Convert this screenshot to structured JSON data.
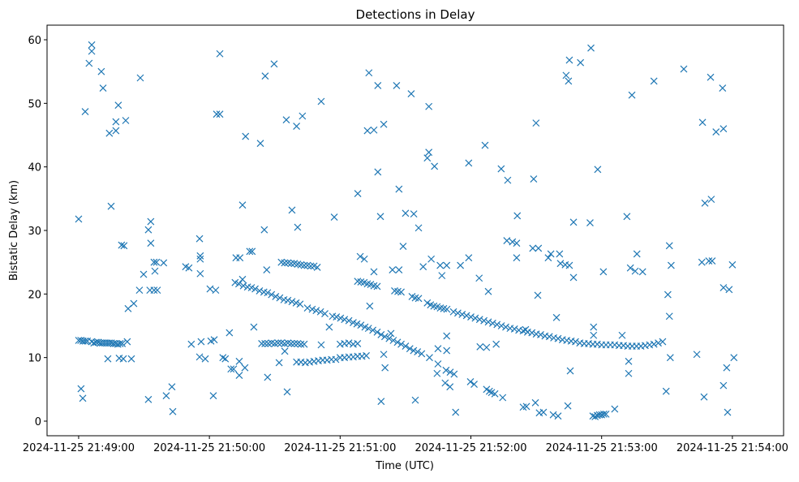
{
  "chart_data": {
    "type": "scatter",
    "title": "Detections in Delay",
    "xlabel": "Time (UTC)",
    "ylabel": "Bistatic Delay (km)",
    "x_units": "seconds after 2024-11-25 21:49:00",
    "xlim": [
      -14.5,
      323.5
    ],
    "ylim": [
      -2.3,
      62.3
    ],
    "grid": false,
    "marker": "x",
    "color": "#1f77b4",
    "xticks": [
      {
        "value": 0,
        "label": "2024-11-25 21:49:00"
      },
      {
        "value": 60,
        "label": "2024-11-25 21:50:00"
      },
      {
        "value": 120,
        "label": "2024-11-25 21:51:00"
      },
      {
        "value": 180,
        "label": "2024-11-25 21:52:00"
      },
      {
        "value": 240,
        "label": "2024-11-25 21:53:00"
      },
      {
        "value": 300,
        "label": "2024-11-25 21:54:00"
      }
    ],
    "yticks": [
      {
        "value": 0,
        "label": "0"
      },
      {
        "value": 10,
        "label": "10"
      },
      {
        "value": 20,
        "label": "20"
      },
      {
        "value": 30,
        "label": "30"
      },
      {
        "value": 40,
        "label": "40"
      },
      {
        "value": 50,
        "label": "50"
      },
      {
        "value": 60,
        "label": "60"
      }
    ],
    "points": [
      [
        0,
        31.8
      ],
      [
        1.1,
        5.1
      ],
      [
        1.9,
        3.6
      ],
      [
        3,
        48.7
      ],
      [
        4.8,
        56.3
      ],
      [
        6,
        59.2
      ],
      [
        6,
        58.2
      ],
      [
        10.4,
        55
      ],
      [
        11.2,
        52.4
      ],
      [
        14.1,
        45.3
      ],
      [
        17.1,
        45.7
      ],
      [
        18.2,
        49.7
      ],
      [
        17.1,
        47.1
      ],
      [
        21.6,
        47.3
      ],
      [
        14.9,
        33.8
      ],
      [
        19.7,
        27.7
      ],
      [
        20.8,
        27.6
      ],
      [
        13.4,
        9.8
      ],
      [
        18.6,
        9.9
      ],
      [
        20.5,
        9.8
      ],
      [
        24.2,
        9.8
      ],
      [
        22.3,
        12.5
      ],
      [
        22.7,
        17.7
      ],
      [
        25.3,
        18.5
      ],
      [
        27.9,
        20.6
      ],
      [
        28.3,
        54
      ],
      [
        29.8,
        23.1
      ],
      [
        32,
        30.1
      ],
      [
        33.1,
        31.4
      ],
      [
        33.1,
        28
      ],
      [
        32.7,
        20.6
      ],
      [
        34.6,
        20.6
      ],
      [
        36.1,
        20.6
      ],
      [
        35,
        23.6
      ],
      [
        34.6,
        25
      ],
      [
        35.7,
        25
      ],
      [
        39,
        24.9
      ],
      [
        32,
        3.4
      ],
      [
        40.2,
        4
      ],
      [
        42.8,
        5.4
      ],
      [
        43.2,
        1.5
      ],
      [
        49.1,
        24.3
      ],
      [
        50.6,
        24.1
      ],
      [
        51.7,
        12.1
      ],
      [
        55.5,
        28.7
      ],
      [
        55.8,
        26
      ],
      [
        55.8,
        25.5
      ],
      [
        55.8,
        23.2
      ],
      [
        56.2,
        12.5
      ],
      [
        55.5,
        10.1
      ],
      [
        58.1,
        9.8
      ],
      [
        60.3,
        20.8
      ],
      [
        60.7,
        12.6
      ],
      [
        62.2,
        12.8
      ],
      [
        61.8,
        4
      ],
      [
        62.9,
        20.6
      ],
      [
        63.3,
        48.3
      ],
      [
        64.8,
        48.3
      ],
      [
        64.8,
        57.8
      ],
      [
        66.2,
        10
      ],
      [
        67.3,
        9.8
      ],
      [
        69.2,
        13.9
      ],
      [
        69.9,
        8.2
      ],
      [
        71.1,
        8.2
      ],
      [
        73.7,
        9.4
      ],
      [
        73.7,
        7.2
      ],
      [
        76.3,
        8.4
      ],
      [
        75.2,
        34
      ],
      [
        76.6,
        44.8
      ],
      [
        72.2,
        25.7
      ],
      [
        74,
        25.7
      ],
      [
        75.2,
        22.3
      ],
      [
        78.5,
        26.7
      ],
      [
        79.6,
        26.7
      ],
      [
        80.4,
        14.8
      ],
      [
        83.4,
        43.7
      ],
      [
        85.2,
        30.1
      ],
      [
        85.6,
        54.3
      ],
      [
        89.7,
        56.2
      ],
      [
        86.3,
        23.8
      ],
      [
        86.7,
        6.9
      ],
      [
        95.3,
        47.4
      ],
      [
        100,
        46.4
      ],
      [
        102.7,
        48
      ],
      [
        97.9,
        33.2
      ],
      [
        100.5,
        30.5
      ],
      [
        95.7,
        4.6
      ],
      [
        92,
        9.2
      ],
      [
        94.6,
        11
      ],
      [
        111.3,
        50.3
      ],
      [
        117.3,
        32.1
      ],
      [
        115,
        14.8
      ],
      [
        111.3,
        12
      ],
      [
        128.1,
        35.8
      ],
      [
        129.2,
        25.9
      ],
      [
        131.1,
        25.5
      ],
      [
        133.2,
        54.8
      ],
      [
        132.5,
        45.7
      ],
      [
        135.5,
        45.8
      ],
      [
        137.3,
        52.8
      ],
      [
        137.3,
        39.2
      ],
      [
        140,
        46.7
      ],
      [
        138.5,
        32.2
      ],
      [
        133.6,
        18.1
      ],
      [
        135.5,
        23.5
      ],
      [
        140.6,
        8.4
      ],
      [
        140,
        10.5
      ],
      [
        138.8,
        3.1
      ],
      [
        143.3,
        13.8
      ],
      [
        145.9,
        52.8
      ],
      [
        147,
        36.5
      ],
      [
        148.9,
        27.5
      ],
      [
        150,
        32.7
      ],
      [
        152.6,
        51.5
      ],
      [
        153.8,
        32.6
      ],
      [
        156,
        30.4
      ],
      [
        144,
        23.8
      ],
      [
        147,
        23.8
      ],
      [
        154.5,
        3.3
      ],
      [
        158.1,
        24.3
      ],
      [
        160.7,
        42.3
      ],
      [
        160,
        41.4
      ],
      [
        160.7,
        49.5
      ],
      [
        163.3,
        40.1
      ],
      [
        161.8,
        25.5
      ],
      [
        165.9,
        24.5
      ],
      [
        168.9,
        24.5
      ],
      [
        166.7,
        22.9
      ],
      [
        164.9,
        11.4
      ],
      [
        168.9,
        13.4
      ],
      [
        168.9,
        11.1
      ],
      [
        164.5,
        7.5
      ],
      [
        168.2,
        6
      ],
      [
        170.4,
        5.4
      ],
      [
        173,
        1.4
      ],
      [
        175.2,
        24.5
      ],
      [
        179,
        40.6
      ],
      [
        179,
        25.7
      ],
      [
        183.8,
        22.5
      ],
      [
        186.5,
        43.4
      ],
      [
        188,
        20.4
      ],
      [
        184.2,
        11.7
      ],
      [
        187.2,
        11.6
      ],
      [
        191.6,
        12.1
      ],
      [
        193.9,
        39.7
      ],
      [
        196.9,
        37.9
      ],
      [
        196.5,
        28.4
      ],
      [
        199.1,
        28.2
      ],
      [
        201.3,
        32.3
      ],
      [
        201,
        28
      ],
      [
        201,
        25.7
      ],
      [
        205.1,
        14.4
      ],
      [
        208.8,
        38.1
      ],
      [
        209.9,
        46.9
      ],
      [
        208.4,
        27.2
      ],
      [
        211,
        27.2
      ],
      [
        210.7,
        19.8
      ],
      [
        204,
        2.2
      ],
      [
        205.5,
        2.3
      ],
      [
        209.6,
        2.9
      ],
      [
        211.4,
        1.3
      ],
      [
        213.3,
        1.4
      ],
      [
        215.5,
        25.7
      ],
      [
        216.7,
        26.3
      ],
      [
        217.8,
        1
      ],
      [
        219.3,
        16.3
      ],
      [
        220.7,
        26.3
      ],
      [
        221.1,
        24.8
      ],
      [
        223.3,
        24.6
      ],
      [
        225.2,
        24.5
      ],
      [
        224.5,
        2.4
      ],
      [
        220,
        0.8
      ],
      [
        223.7,
        54.4
      ],
      [
        224.8,
        53.5
      ],
      [
        225.2,
        56.8
      ],
      [
        227.1,
        31.3
      ],
      [
        227.1,
        22.6
      ],
      [
        225.6,
        7.9
      ],
      [
        230.3,
        56.4
      ],
      [
        235.1,
        58.7
      ],
      [
        234.7,
        31.2
      ],
      [
        236.3,
        14.8
      ],
      [
        236.3,
        13.5
      ],
      [
        238.2,
        39.6
      ],
      [
        240.8,
        23.5
      ],
      [
        246,
        1.9
      ],
      [
        249.4,
        13.5
      ],
      [
        251.6,
        32.2
      ],
      [
        252.4,
        9.4
      ],
      [
        252.4,
        7.5
      ],
      [
        253.9,
        51.3
      ],
      [
        253.2,
        24.1
      ],
      [
        255.4,
        23.6
      ],
      [
        256.2,
        26.3
      ],
      [
        258.8,
        23.5
      ],
      [
        264,
        53.5
      ],
      [
        269.6,
        4.7
      ],
      [
        270.4,
        19.9
      ],
      [
        271.1,
        16.5
      ],
      [
        271.1,
        27.6
      ],
      [
        271.5,
        10
      ],
      [
        271.9,
        24.5
      ],
      [
        277.7,
        55.4
      ],
      [
        283.7,
        10.5
      ],
      [
        286.3,
        47
      ],
      [
        286,
        25
      ],
      [
        287.4,
        34.3
      ],
      [
        287,
        3.8
      ],
      [
        290,
        54.1
      ],
      [
        290.3,
        34.9
      ],
      [
        289.2,
        25.2
      ],
      [
        290.7,
        25.2
      ],
      [
        292.5,
        45.5
      ],
      [
        295.5,
        52.4
      ],
      [
        295.9,
        46
      ],
      [
        295.9,
        21
      ],
      [
        298.5,
        20.7
      ],
      [
        295.9,
        5.6
      ],
      [
        297.4,
        8.4
      ],
      [
        297.8,
        1.4
      ],
      [
        300,
        24.6
      ],
      [
        300.7,
        10
      ],
      [
        0,
        12.7
      ],
      [
        1,
        12.7
      ],
      [
        2,
        12.6
      ],
      [
        3,
        12.6
      ],
      [
        4,
        12.6
      ],
      [
        6,
        12.5
      ],
      [
        7,
        12.3
      ],
      [
        8,
        12.4
      ],
      [
        9,
        12.4
      ],
      [
        10,
        12.3
      ],
      [
        11,
        12.3
      ],
      [
        12,
        12.3
      ],
      [
        13,
        12.3
      ],
      [
        14,
        12.3
      ],
      [
        15,
        12.3
      ],
      [
        16,
        12.2
      ],
      [
        17,
        12.2
      ],
      [
        18,
        12.1
      ],
      [
        19,
        12.2
      ],
      [
        20,
        12.2
      ],
      [
        84,
        12.2
      ],
      [
        85.5,
        12.2
      ],
      [
        87,
        12.2
      ],
      [
        88.5,
        12.3
      ],
      [
        90,
        12.2
      ],
      [
        91.5,
        12.3
      ],
      [
        93,
        12.3
      ],
      [
        94.5,
        12.2
      ],
      [
        96,
        12.3
      ],
      [
        97.5,
        12.2
      ],
      [
        99,
        12.2
      ],
      [
        100.5,
        12.2
      ],
      [
        102,
        12.1
      ],
      [
        103.5,
        12.1
      ],
      [
        93,
        25
      ],
      [
        94.5,
        24.9
      ],
      [
        96,
        24.9
      ],
      [
        97.5,
        24.8
      ],
      [
        99,
        24.8
      ],
      [
        100.5,
        24.7
      ],
      [
        102,
        24.6
      ],
      [
        103.5,
        24.5
      ],
      [
        105,
        24.5
      ],
      [
        106.5,
        24.4
      ],
      [
        108,
        24.4
      ],
      [
        109.5,
        24.2
      ],
      [
        71.8,
        21.8
      ],
      [
        73.5,
        21.6
      ],
      [
        75.6,
        21.3
      ],
      [
        77.5,
        21.1
      ],
      [
        79.3,
        21
      ],
      [
        81,
        20.8
      ],
      [
        83,
        20.5
      ],
      [
        85,
        20.3
      ],
      [
        86.7,
        20.2
      ],
      [
        88.5,
        19.9
      ],
      [
        90.4,
        19.6
      ],
      [
        92.3,
        19.4
      ],
      [
        94.2,
        19.1
      ],
      [
        96,
        19
      ],
      [
        97.9,
        18.8
      ],
      [
        99.8,
        18.6
      ],
      [
        101.6,
        18.4
      ],
      [
        105,
        17.8
      ],
      [
        107.2,
        17.6
      ],
      [
        109,
        17.4
      ],
      [
        111,
        17.2
      ],
      [
        113,
        16.9
      ],
      [
        116.5,
        16.5
      ],
      [
        118.3,
        16.4
      ],
      [
        120.2,
        16.2
      ],
      [
        122,
        16
      ],
      [
        124,
        15.8
      ],
      [
        126,
        15.5
      ],
      [
        127.7,
        15.3
      ],
      [
        129.5,
        15.1
      ],
      [
        131.4,
        14.8
      ],
      [
        133,
        14.6
      ],
      [
        135,
        14.3
      ],
      [
        137,
        14
      ],
      [
        138.8,
        13.6
      ],
      [
        140.5,
        13.3
      ],
      [
        142.5,
        13
      ],
      [
        144.4,
        12.7
      ],
      [
        146.3,
        12.4
      ],
      [
        148,
        12.1
      ],
      [
        150,
        11.8
      ],
      [
        152,
        11.4
      ],
      [
        153.7,
        11.1
      ],
      [
        155.5,
        10.9
      ],
      [
        157.4,
        10.6
      ],
      [
        161,
        10
      ],
      [
        164.9,
        9
      ],
      [
        168.6,
        8
      ],
      [
        170.5,
        7.7
      ],
      [
        172.3,
        7.4
      ],
      [
        179.8,
        6.2
      ],
      [
        181.5,
        5.8
      ],
      [
        187.2,
        5
      ],
      [
        188.5,
        4.7
      ],
      [
        189.5,
        4.5
      ],
      [
        191,
        4.3
      ],
      [
        194.6,
        3.7
      ],
      [
        128,
        22
      ],
      [
        129.5,
        21.9
      ],
      [
        131,
        21.8
      ],
      [
        132.5,
        21.6
      ],
      [
        134,
        21.5
      ],
      [
        135.5,
        21.3
      ],
      [
        137,
        21.2
      ],
      [
        145,
        20.5
      ],
      [
        146.5,
        20.4
      ],
      [
        148,
        20.3
      ],
      [
        153,
        19.6
      ],
      [
        154.5,
        19.4
      ],
      [
        156,
        19.3
      ],
      [
        160,
        18.6
      ],
      [
        161.5,
        18.3
      ],
      [
        163,
        18.1
      ],
      [
        164.5,
        18
      ],
      [
        166,
        17.8
      ],
      [
        167.5,
        17.7
      ],
      [
        169,
        17.6
      ],
      [
        172,
        17.2
      ],
      [
        174,
        17
      ],
      [
        176,
        16.8
      ],
      [
        178,
        16.6
      ],
      [
        180,
        16.4
      ],
      [
        182,
        16.2
      ],
      [
        184,
        16
      ],
      [
        186,
        15.8
      ],
      [
        188,
        15.6
      ],
      [
        190,
        15.4
      ],
      [
        192,
        15.2
      ],
      [
        194,
        15
      ],
      [
        196,
        14.8
      ],
      [
        198,
        14.6
      ],
      [
        200,
        14.5
      ],
      [
        202,
        14.3
      ],
      [
        204,
        14.2
      ],
      [
        206,
        14
      ],
      [
        208,
        13.9
      ],
      [
        210,
        13.7
      ],
      [
        212,
        13.6
      ],
      [
        214,
        13.4
      ],
      [
        216,
        13.3
      ],
      [
        218,
        13.1
      ],
      [
        220,
        13
      ],
      [
        222,
        12.8
      ],
      [
        224,
        12.7
      ],
      [
        226,
        12.6
      ],
      [
        228,
        12.5
      ],
      [
        230,
        12.3
      ],
      [
        232,
        12.2
      ],
      [
        234,
        12.2
      ],
      [
        236,
        12.1
      ],
      [
        238,
        12.1
      ],
      [
        240,
        12
      ],
      [
        242,
        12
      ],
      [
        244,
        12
      ],
      [
        246,
        12
      ],
      [
        248,
        11.9
      ],
      [
        250,
        11.9
      ],
      [
        252,
        11.8
      ],
      [
        254,
        11.8
      ],
      [
        256,
        11.8
      ],
      [
        258,
        11.8
      ],
      [
        260,
        11.9
      ],
      [
        262,
        12
      ],
      [
        264,
        12.1
      ],
      [
        266,
        12.3
      ],
      [
        268,
        12.5
      ],
      [
        100,
        9.3
      ],
      [
        102,
        9.3
      ],
      [
        104,
        9.2
      ],
      [
        106,
        9.3
      ],
      [
        108,
        9.4
      ],
      [
        110,
        9.5
      ],
      [
        112,
        9.6
      ],
      [
        114,
        9.6
      ],
      [
        116,
        9.7
      ],
      [
        118,
        9.7
      ],
      [
        120,
        10
      ],
      [
        122,
        10
      ],
      [
        124,
        10.1
      ],
      [
        126,
        10.1
      ],
      [
        128,
        10.2
      ],
      [
        130,
        10.2
      ],
      [
        132,
        10.3
      ],
      [
        120,
        12.1
      ],
      [
        122,
        12.2
      ],
      [
        124,
        12.3
      ],
      [
        126,
        12.1
      ],
      [
        128,
        12.2
      ],
      [
        236,
        0.8
      ],
      [
        237,
        0.7
      ],
      [
        238,
        0.9
      ],
      [
        239,
        1
      ],
      [
        240,
        1
      ],
      [
        241,
        1.1
      ],
      [
        242,
        1.1
      ]
    ]
  }
}
